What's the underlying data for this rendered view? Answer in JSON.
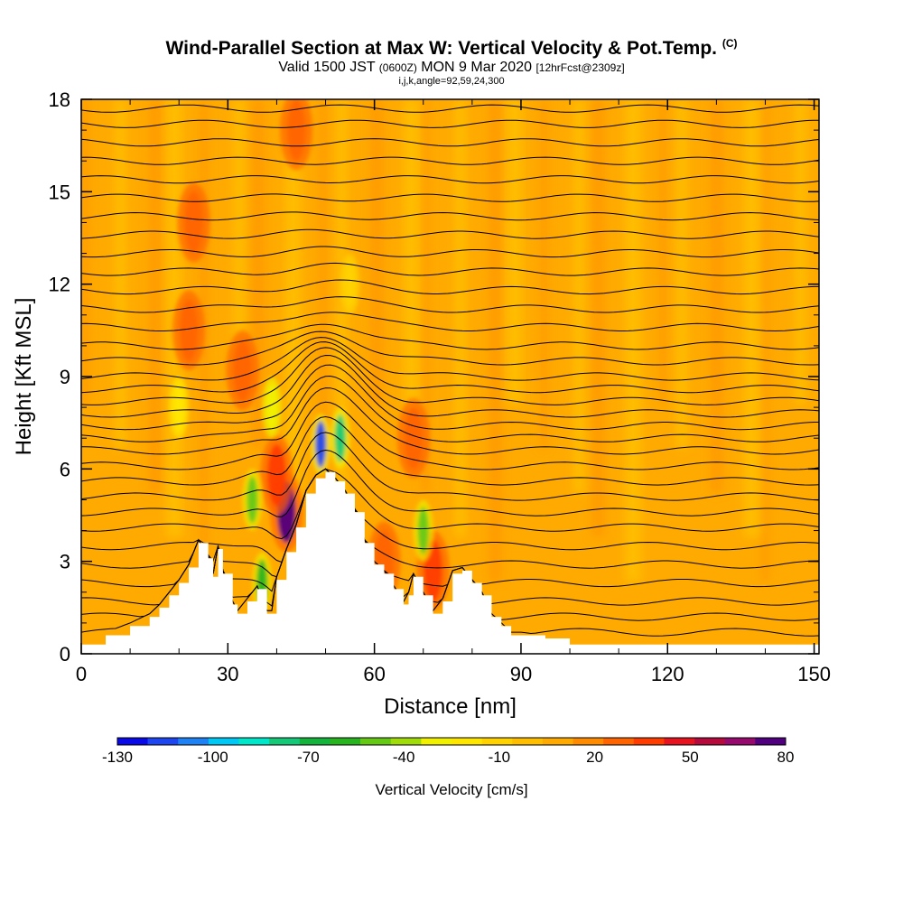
{
  "title": {
    "main": "Wind-Parallel Section at Max W: Vertical Velocity & Pot.Temp.",
    "main_unit": "(C)",
    "valid_prefix": "Valid 1500 JST",
    "valid_utc": "(0600Z)",
    "valid_date": "MON 9 Mar 2020",
    "forecast": "[12hrFcst@2309z]",
    "params": "i,j,k,angle=92,59,24,300"
  },
  "chart_data": {
    "type": "heatmap",
    "xlabel": "Distance [nm]",
    "ylabel": "Height [Kft MSL]",
    "xlim": [
      0,
      151
    ],
    "ylim": [
      0,
      18
    ],
    "x_ticks": [
      "0",
      "30",
      "60",
      "90",
      "120",
      "150"
    ],
    "y_ticks": [
      "0",
      "3",
      "6",
      "9",
      "12",
      "15",
      "18"
    ],
    "grid": false,
    "background_level_cm_s": 10,
    "colorbar": {
      "title": "Vertical Velocity [cm/s]",
      "min": -130,
      "max": 80,
      "step": 10,
      "labels": [
        "-130",
        "-100",
        "-70",
        "-40",
        "-10",
        "20",
        "50",
        "80"
      ],
      "colors": [
        "#0a0ae6",
        "#1e46f0",
        "#1e82f5",
        "#00c8f5",
        "#00e6c8",
        "#14c878",
        "#14b43c",
        "#28b41e",
        "#64c814",
        "#a0dc0a",
        "#f0f000",
        "#ffe600",
        "#ffd200",
        "#ffbe00",
        "#ffaa00",
        "#ff8c00",
        "#ff6400",
        "#ff3c00",
        "#e6141e",
        "#b40a3c",
        "#960a6e",
        "#50007e"
      ]
    },
    "terrain": {
      "distance_nm": [
        0,
        5,
        10,
        14,
        16,
        18,
        20,
        22,
        24,
        26,
        27,
        28,
        29,
        31,
        32,
        34,
        36,
        38,
        39,
        40,
        42,
        44,
        46,
        48,
        50,
        52,
        54,
        56,
        58,
        60,
        62,
        64,
        66,
        67,
        68,
        70,
        72,
        74,
        76,
        78,
        80,
        82,
        84,
        86,
        88,
        90,
        95,
        100
      ],
      "height_kft": [
        0.3,
        0.6,
        0.9,
        1.2,
        1.5,
        1.9,
        2.3,
        2.8,
        3.6,
        3.1,
        2.5,
        3.4,
        2.6,
        1.6,
        1.3,
        1.7,
        2.1,
        1.3,
        1.3,
        2.4,
        3.3,
        4.1,
        5.2,
        5.7,
        5.9,
        5.6,
        5.2,
        4.6,
        3.6,
        2.9,
        2.6,
        2.1,
        1.6,
        1.9,
        2.5,
        1.9,
        1.3,
        1.7,
        2.6,
        2.7,
        2.3,
        1.9,
        1.2,
        0.9,
        0.6,
        0.6,
        0.5,
        0.3
      ]
    },
    "updraft_cells": [
      {
        "x_nm": 42,
        "y_kft": 4.6,
        "w_cm_s": 80
      },
      {
        "x_nm": 40,
        "y_kft": 5.8,
        "w_cm_s": 40
      },
      {
        "x_nm": 33,
        "y_kft": 9.2,
        "w_cm_s": 30
      },
      {
        "x_nm": 68,
        "y_kft": 7.0,
        "w_cm_s": 25
      },
      {
        "x_nm": 72,
        "y_kft": 2.7,
        "w_cm_s": 40
      },
      {
        "x_nm": 62,
        "y_kft": 3.0,
        "w_cm_s": 30
      },
      {
        "x_nm": 22,
        "y_kft": 10.5,
        "w_cm_s": 25
      },
      {
        "x_nm": 44,
        "y_kft": 17.0,
        "w_cm_s": 25
      },
      {
        "x_nm": 23,
        "y_kft": 14.0,
        "w_cm_s": 25
      }
    ],
    "downdraft_cells": [
      {
        "x_nm": 49,
        "y_kft": 6.8,
        "w_cm_s": -120
      },
      {
        "x_nm": 53,
        "y_kft": 7.0,
        "w_cm_s": -80
      },
      {
        "x_nm": 35,
        "y_kft": 5.0,
        "w_cm_s": -50
      },
      {
        "x_nm": 37,
        "y_kft": 2.3,
        "w_cm_s": -60
      },
      {
        "x_nm": 70,
        "y_kft": 4.0,
        "w_cm_s": -50
      },
      {
        "x_nm": 39,
        "y_kft": 8.0,
        "w_cm_s": -30
      },
      {
        "x_nm": 55,
        "y_kft": 12.0,
        "w_cm_s": -15
      },
      {
        "x_nm": 20,
        "y_kft": 8.0,
        "w_cm_s": -20
      }
    ],
    "theta_contour_heights_kft": [
      0.7,
      1.2,
      1.7,
      2.3,
      2.9,
      3.5,
      4.1,
      4.6,
      5.1,
      5.6,
      6.1,
      6.6,
      7.0,
      7.4,
      7.8,
      8.2,
      8.6,
      9.0,
      9.5,
      10.0,
      10.6,
      11.2,
      11.8,
      12.4,
      13.0,
      13.6,
      14.2,
      14.8,
      15.4,
      16.0,
      16.6,
      17.2,
      17.7
    ]
  }
}
